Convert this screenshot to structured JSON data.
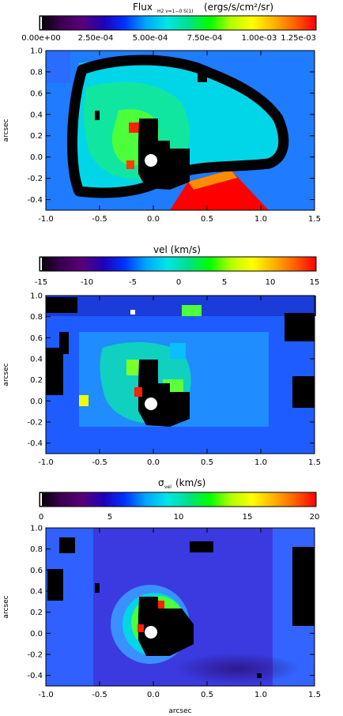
{
  "chart_data": [
    {
      "type": "heatmap",
      "title_main": "Flux",
      "title_sub": "H2 ν=1−0 S(1)",
      "title_units": "(ergs/s/cm²/sr)",
      "colorbar": {
        "range": [
          0,
          0.00125
        ],
        "tick_labels": [
          "0.00e+00",
          "2.50e-04",
          "5.00e-04",
          "7.50e-04",
          "1.00e-03",
          "1.25e-03"
        ]
      },
      "xlim": [
        -1.0,
        1.5
      ],
      "ylim": [
        -0.5,
        1.0
      ],
      "xticks": [
        "-1.0",
        "-0.5",
        "0.0",
        "0.5",
        "1.0",
        "1.5"
      ],
      "yticks": [
        "1.0",
        "0.8",
        "0.6",
        "0.4",
        "0.2",
        "0.0",
        "-0.2",
        "-0.4"
      ],
      "ylabel": "arcsec",
      "xlabel": "",
      "overlays": [
        "flux contour (black)",
        "central mask (black)",
        "nucleus marker (white)"
      ]
    },
    {
      "type": "heatmap",
      "title": "vel  (km/s)",
      "colorbar": {
        "range": [
          -15,
          15
        ],
        "tick_labels": [
          "-15",
          "-10",
          "-5",
          "0",
          "5",
          "10",
          "15"
        ]
      },
      "xlim": [
        -1.0,
        1.5
      ],
      "ylim": [
        -0.5,
        1.0
      ],
      "xticks": [
        "-1.0",
        "-0.5",
        "0.0",
        "0.5",
        "1.0",
        "1.5"
      ],
      "yticks": [
        "1.0",
        "0.8",
        "0.6",
        "0.4",
        "0.2",
        "0.0",
        "-0.2",
        "-0.4"
      ],
      "ylabel": "arcsec",
      "xlabel": ""
    },
    {
      "type": "heatmap",
      "title_main": "σ",
      "title_sub": "vel",
      "title_units": "(km/s)",
      "colorbar": {
        "range": [
          0,
          20
        ],
        "tick_labels": [
          "0",
          "5",
          "10",
          "15",
          "20"
        ]
      },
      "xlim": [
        -1.0,
        1.5
      ],
      "ylim": [
        -0.5,
        1.0
      ],
      "xticks": [
        "-1.0",
        "-0.5",
        "0.0",
        "0.5",
        "1.0",
        "1.5"
      ],
      "yticks": [
        "1.0",
        "0.8",
        "0.6",
        "0.4",
        "0.2",
        "0.0",
        "-0.2",
        "-0.4"
      ],
      "ylabel": "arcsec",
      "xlabel": "arcsec"
    }
  ],
  "colors": {
    "colormap": [
      "#000000",
      "#3a0050",
      "#5a007a",
      "#2000b8",
      "#0032ff",
      "#00a6ff",
      "#00e6e6",
      "#00e08a",
      "#00ff00",
      "#b4ff00",
      "#ffff00",
      "#ffb400",
      "#ff6000",
      "#ff0000"
    ],
    "contour": "#000000",
    "mask": "#000000",
    "nucleus": "#ffffff"
  }
}
